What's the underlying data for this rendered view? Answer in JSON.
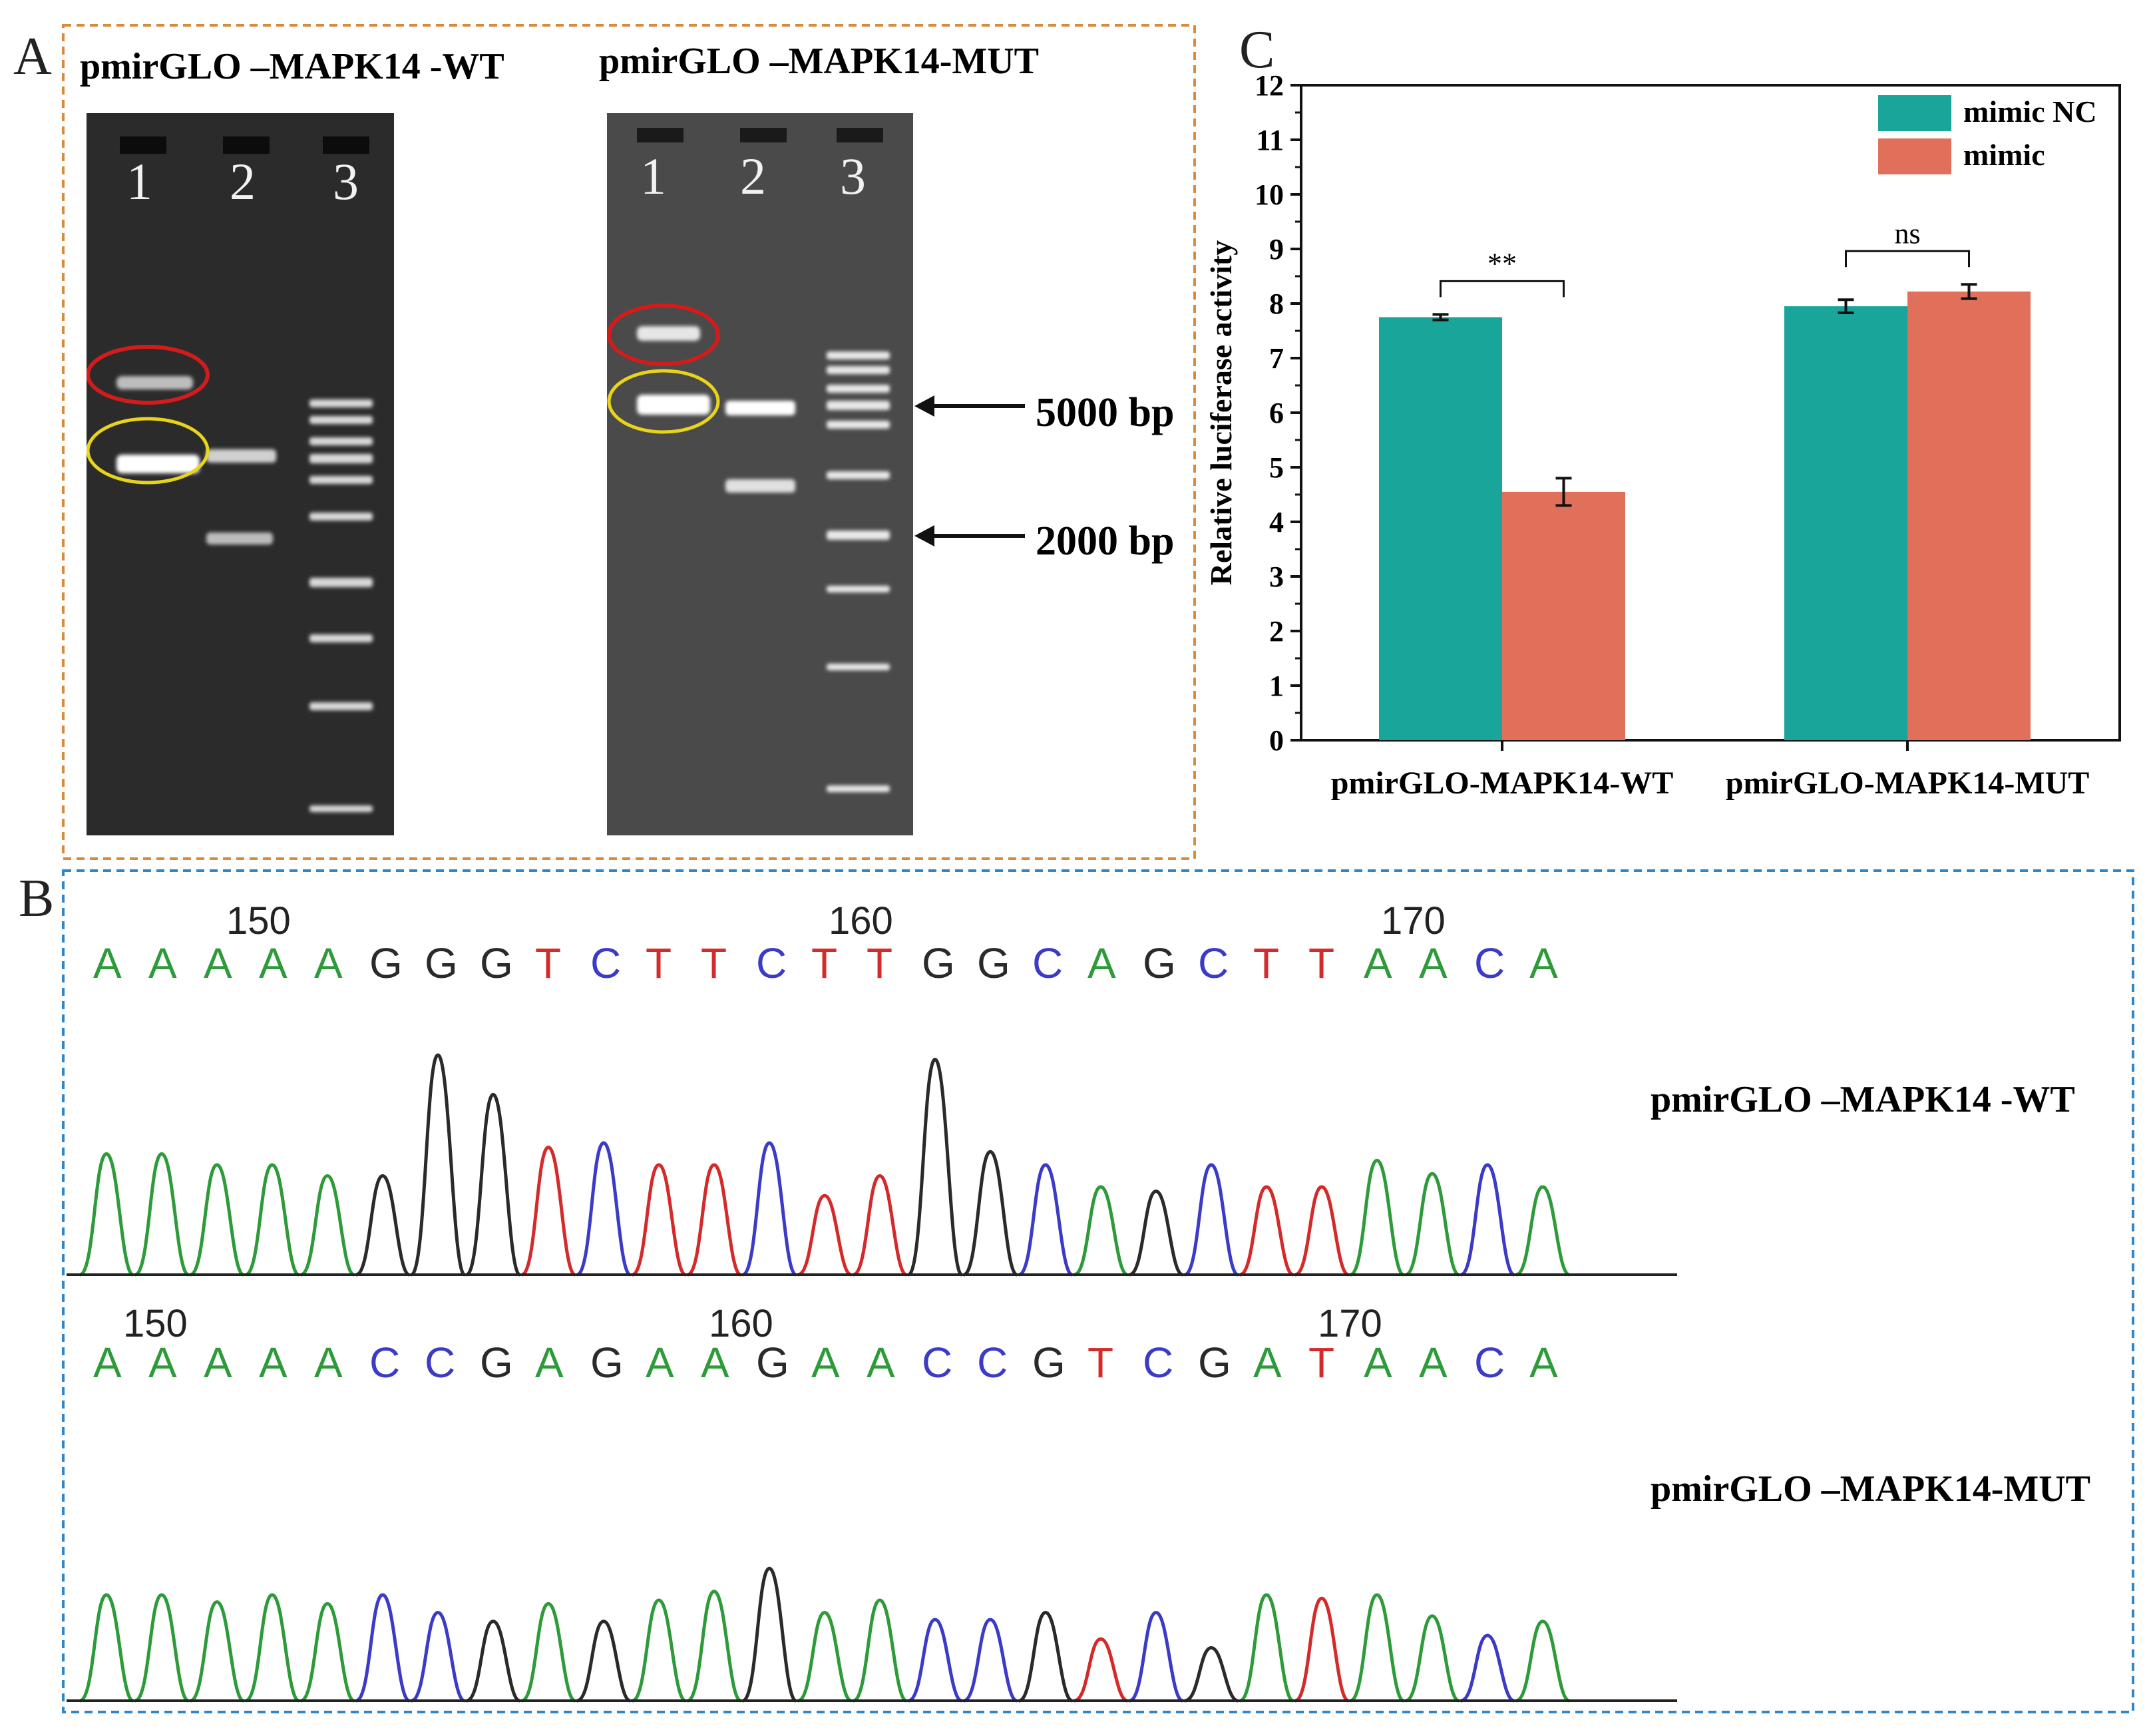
{
  "panels": {
    "a": "A",
    "b": "B",
    "c": "C"
  },
  "gel": {
    "wt_title": "pmirGLO –MAPK14 -WT",
    "mut_title": "pmirGLO –MAPK14-MUT",
    "lanes": [
      "1",
      "2",
      "3"
    ],
    "marker_5000": "5000 bp",
    "marker_2000": "2000 bp"
  },
  "sequencing": {
    "wt": {
      "label": "pmirGLO –MAPK14 -WT",
      "positions": [
        "150",
        "160",
        "170"
      ],
      "bases": [
        "A",
        "A",
        "A",
        "A",
        "A",
        "G",
        "G",
        "G",
        "T",
        "C",
        "T",
        "T",
        "C",
        "T",
        "T",
        "G",
        "G",
        "C",
        "A",
        "G",
        "C",
        "T",
        "T",
        "A",
        "A",
        "C",
        "A"
      ]
    },
    "mut": {
      "label": "pmirGLO –MAPK14-MUT",
      "positions": [
        "150",
        "160",
        "170"
      ],
      "bases": [
        "A",
        "A",
        "A",
        "A",
        "A",
        "C",
        "C",
        "G",
        "A",
        "G",
        "A",
        "A",
        "G",
        "A",
        "A",
        "C",
        "C",
        "G",
        "T",
        "C",
        "G",
        "A",
        "T",
        "A",
        "A",
        "C",
        "A"
      ]
    },
    "base_colors": {
      "A": "#2e9b3a",
      "C": "#3b3bc8",
      "G": "#2a2a2a",
      "T": "#d42a2a"
    }
  },
  "chart_data": {
    "type": "bar",
    "categories": [
      "pmirGLO-MAPK14-WT",
      "pmirGLO-MAPK14-MUT"
    ],
    "series": [
      {
        "name": "mimic NC",
        "color": "#1aa59b",
        "values": [
          7.75,
          7.95
        ],
        "errors": [
          0.05,
          0.12
        ]
      },
      {
        "name": "mimic",
        "color": "#e0705a",
        "values": [
          4.55,
          8.22
        ],
        "errors": [
          0.25,
          0.13
        ]
      }
    ],
    "ylabel": "Relative  luciferase activity",
    "xlabel": "",
    "ylim": [
      0,
      12
    ],
    "yticks": [
      "0",
      "1",
      "2",
      "3",
      "4",
      "5",
      "6",
      "7",
      "8",
      "9",
      "10",
      "11",
      "12"
    ],
    "annotations": [
      {
        "text": "**",
        "category": 0
      },
      {
        "text": "ns",
        "category": 1
      }
    ],
    "legend_position": "top-right"
  }
}
